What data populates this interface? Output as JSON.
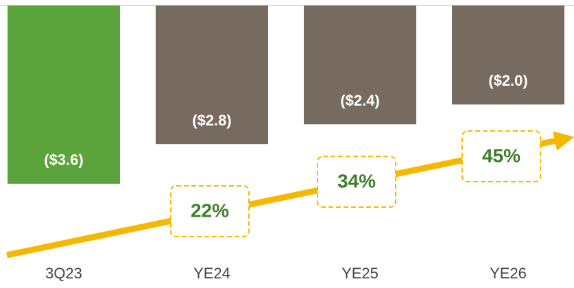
{
  "chart_data": {
    "type": "bar",
    "categories": [
      "3Q23",
      "YE24",
      "YE25",
      "YE26"
    ],
    "values": [
      -3.6,
      -2.8,
      -2.4,
      -2.0
    ],
    "value_labels": [
      "($3.6)",
      "($2.8)",
      "($2.4)",
      "($2.0)"
    ],
    "colors": [
      "#5ba33b",
      "#776b60",
      "#776b60",
      "#776b60"
    ],
    "ylim": [
      -5,
      0
    ],
    "annotations": [
      "22%",
      "34%",
      "45%"
    ],
    "annotation_color": "#3f7f2a",
    "arrow_color": "#f5b800"
  }
}
